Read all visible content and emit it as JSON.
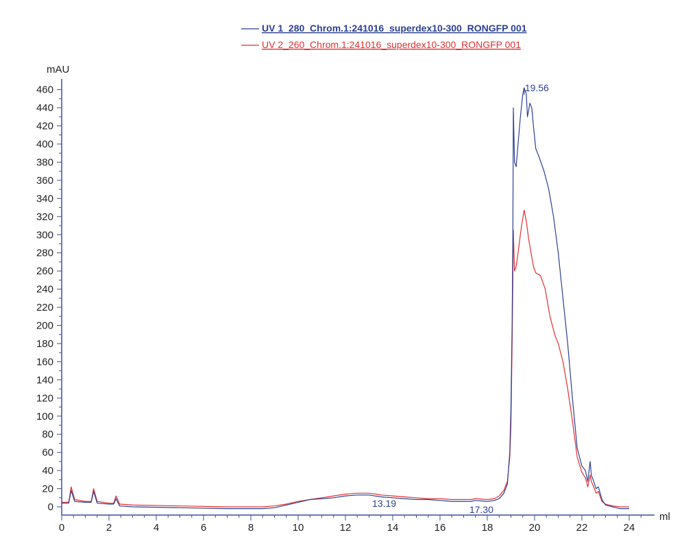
{
  "chart_data": {
    "type": "line",
    "xlabel": "ml",
    "ylabel": "mAU",
    "xlim": [
      0,
      24.8
    ],
    "ylim": [
      -10,
      470
    ],
    "x_ticks": [
      0,
      2,
      4,
      6,
      8,
      10,
      12,
      14,
      16,
      18,
      20,
      22,
      24
    ],
    "y_ticks": [
      0,
      20,
      40,
      60,
      80,
      100,
      120,
      140,
      160,
      180,
      200,
      220,
      240,
      260,
      280,
      300,
      320,
      340,
      360,
      380,
      400,
      420,
      440,
      460
    ],
    "grid": false,
    "legend_position": "top",
    "series": [
      {
        "name": "UV 1_280_Chrom.1:241016_superdex10-300_RONGFP 001",
        "color": "#2b3f93",
        "points": [
          [
            0,
            4
          ],
          [
            0.3,
            4
          ],
          [
            0.4,
            18
          ],
          [
            0.55,
            6
          ],
          [
            1.0,
            5
          ],
          [
            1.25,
            5
          ],
          [
            1.35,
            17
          ],
          [
            1.5,
            4
          ],
          [
            2.0,
            3
          ],
          [
            2.2,
            3
          ],
          [
            2.3,
            9
          ],
          [
            2.45,
            1
          ],
          [
            3.0,
            0
          ],
          [
            5.0,
            -1
          ],
          [
            7.0,
            -2
          ],
          [
            8.5,
            -2
          ],
          [
            9.0,
            -1
          ],
          [
            9.5,
            2
          ],
          [
            10.0,
            5
          ],
          [
            10.5,
            8
          ],
          [
            11.0,
            9
          ],
          [
            11.5,
            10
          ],
          [
            12.0,
            12
          ],
          [
            12.5,
            13
          ],
          [
            13.0,
            13
          ],
          [
            13.5,
            11
          ],
          [
            14.0,
            10
          ],
          [
            14.5,
            9
          ],
          [
            15.0,
            8
          ],
          [
            15.5,
            8
          ],
          [
            16.0,
            7
          ],
          [
            16.5,
            6
          ],
          [
            17.0,
            6
          ],
          [
            17.3,
            6
          ],
          [
            17.5,
            7
          ],
          [
            18.0,
            6
          ],
          [
            18.3,
            7
          ],
          [
            18.5,
            9
          ],
          [
            18.7,
            15
          ],
          [
            18.85,
            25
          ],
          [
            18.95,
            60
          ],
          [
            19.0,
            110
          ],
          [
            19.05,
            200
          ],
          [
            19.08,
            300
          ],
          [
            19.1,
            440
          ],
          [
            19.15,
            380
          ],
          [
            19.22,
            375
          ],
          [
            19.3,
            400
          ],
          [
            19.4,
            430
          ],
          [
            19.5,
            455
          ],
          [
            19.56,
            462
          ],
          [
            19.65,
            455
          ],
          [
            19.7,
            430
          ],
          [
            19.8,
            445
          ],
          [
            19.88,
            440
          ],
          [
            19.95,
            420
          ],
          [
            20.05,
            395
          ],
          [
            20.2,
            385
          ],
          [
            20.4,
            370
          ],
          [
            20.6,
            350
          ],
          [
            20.8,
            320
          ],
          [
            21.0,
            280
          ],
          [
            21.2,
            230
          ],
          [
            21.4,
            180
          ],
          [
            21.6,
            120
          ],
          [
            21.8,
            65
          ],
          [
            22.0,
            45
          ],
          [
            22.15,
            40
          ],
          [
            22.25,
            28
          ],
          [
            22.35,
            50
          ],
          [
            22.4,
            35
          ],
          [
            22.5,
            28
          ],
          [
            22.6,
            20
          ],
          [
            22.7,
            22
          ],
          [
            22.85,
            8
          ],
          [
            23.0,
            2
          ],
          [
            23.3,
            0
          ],
          [
            23.6,
            -2
          ],
          [
            24.0,
            -2
          ]
        ]
      },
      {
        "name": "UV 2_260_Chrom.1:241016_superdex10-300_RONGFP 001",
        "color": "#e03030",
        "points": [
          [
            0,
            5
          ],
          [
            0.3,
            5
          ],
          [
            0.4,
            22
          ],
          [
            0.55,
            8
          ],
          [
            1.0,
            6
          ],
          [
            1.25,
            6
          ],
          [
            1.35,
            20
          ],
          [
            1.5,
            6
          ],
          [
            2.0,
            4
          ],
          [
            2.2,
            4
          ],
          [
            2.3,
            12
          ],
          [
            2.45,
            3
          ],
          [
            3.0,
            2
          ],
          [
            5.0,
            1
          ],
          [
            7.0,
            0
          ],
          [
            8.5,
            0
          ],
          [
            9.0,
            1
          ],
          [
            9.5,
            3
          ],
          [
            10.0,
            6
          ],
          [
            10.5,
            8
          ],
          [
            11.0,
            10
          ],
          [
            11.5,
            12
          ],
          [
            12.0,
            14
          ],
          [
            12.5,
            15
          ],
          [
            13.0,
            15
          ],
          [
            13.3,
            14
          ],
          [
            13.5,
            13
          ],
          [
            14.0,
            12
          ],
          [
            14.5,
            11
          ],
          [
            15.0,
            10
          ],
          [
            15.5,
            9
          ],
          [
            16.0,
            9
          ],
          [
            16.5,
            8
          ],
          [
            17.0,
            8
          ],
          [
            17.3,
            8
          ],
          [
            17.5,
            9
          ],
          [
            18.0,
            8
          ],
          [
            18.3,
            9
          ],
          [
            18.5,
            12
          ],
          [
            18.7,
            18
          ],
          [
            18.85,
            28
          ],
          [
            18.95,
            55
          ],
          [
            19.0,
            90
          ],
          [
            19.05,
            180
          ],
          [
            19.08,
            250
          ],
          [
            19.1,
            305
          ],
          [
            19.15,
            260
          ],
          [
            19.22,
            265
          ],
          [
            19.3,
            280
          ],
          [
            19.45,
            310
          ],
          [
            19.56,
            327
          ],
          [
            19.65,
            315
          ],
          [
            19.75,
            295
          ],
          [
            19.85,
            280
          ],
          [
            19.95,
            265
          ],
          [
            20.05,
            258
          ],
          [
            20.25,
            255
          ],
          [
            20.45,
            240
          ],
          [
            20.65,
            210
          ],
          [
            20.85,
            190
          ],
          [
            21.0,
            180
          ],
          [
            21.2,
            160
          ],
          [
            21.4,
            130
          ],
          [
            21.6,
            95
          ],
          [
            21.8,
            55
          ],
          [
            22.0,
            38
          ],
          [
            22.15,
            32
          ],
          [
            22.25,
            22
          ],
          [
            22.35,
            35
          ],
          [
            22.4,
            28
          ],
          [
            22.5,
            22
          ],
          [
            22.6,
            15
          ],
          [
            22.7,
            17
          ],
          [
            22.85,
            6
          ],
          [
            23.0,
            3
          ],
          [
            23.3,
            1
          ],
          [
            23.6,
            0
          ],
          [
            24.0,
            0
          ]
        ]
      }
    ],
    "annotations": [
      {
        "text": "19.56",
        "x": 19.56,
        "y": 462,
        "color": "#2b3f93"
      },
      {
        "text": "13.19",
        "x": 13.19,
        "y": 13,
        "color": "#2b3f93"
      },
      {
        "text": "17.30",
        "x": 17.3,
        "y": 6,
        "color": "#2b3f93"
      }
    ]
  }
}
